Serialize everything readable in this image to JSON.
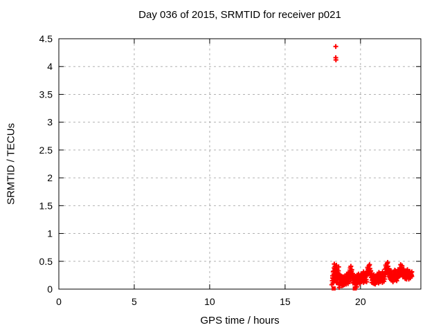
{
  "window": {
    "background": "#ffffff"
  },
  "chart_data": {
    "type": "scatter",
    "title": "Day 036 of 2015, SRMTID for receiver p021",
    "xlabel": "GPS time / hours",
    "ylabel": "SRMTID / TECUs",
    "xlim": [
      0,
      24
    ],
    "ylim": [
      0,
      4.5
    ],
    "x_ticks": [
      0,
      5,
      10,
      15,
      20
    ],
    "x_tick_labels": [
      "0",
      "5",
      "10",
      "15",
      "20"
    ],
    "y_ticks": [
      0,
      0.5,
      1,
      1.5,
      2,
      2.5,
      3,
      3.5,
      4,
      4.5
    ],
    "y_tick_labels": [
      "0",
      "0.5",
      "1",
      "1.5",
      "2",
      "2.5",
      "3",
      "3.5",
      "4",
      "4.5"
    ],
    "grid": true,
    "grid_style": "dashed",
    "legend_position": "none",
    "marker": "plus",
    "zero_value_marker": "filled-square",
    "colors": {
      "points": "#ff0000",
      "grid": "#b0b0b0",
      "axis": "#000000",
      "text": "#000000"
    },
    "series": [
      {
        "name": "SRMTID",
        "points": [
          [
            18.1,
            0.08
          ],
          [
            18.13,
            0.15
          ],
          [
            18.15,
            0.24
          ],
          [
            18.17,
            0.11
          ],
          [
            18.19,
            0.31
          ],
          [
            18.21,
            0.18
          ],
          [
            18.22,
            0.0
          ],
          [
            18.23,
            0.27
          ],
          [
            18.25,
            0.38
          ],
          [
            18.26,
            0.45
          ],
          [
            18.28,
            0.33
          ],
          [
            18.3,
            0.22
          ],
          [
            18.31,
            0.41
          ],
          [
            18.33,
            0.28
          ],
          [
            18.35,
            0.16
          ],
          [
            18.36,
            0.35
          ],
          [
            18.38,
            0.25
          ],
          [
            18.4,
            0.43
          ],
          [
            18.41,
            0.3
          ],
          [
            18.43,
            0.2
          ],
          [
            18.36,
            4.36
          ],
          [
            18.36,
            4.16
          ],
          [
            18.37,
            4.12
          ],
          [
            18.45,
            0.36
          ],
          [
            18.47,
            0.12
          ],
          [
            18.49,
            0.28
          ],
          [
            18.51,
            0.19
          ],
          [
            18.53,
            0.33
          ],
          [
            18.55,
            0.24
          ],
          [
            18.57,
            0.08
          ],
          [
            18.59,
            0.03
          ],
          [
            18.6,
            0.17
          ],
          [
            18.63,
            0.26
          ],
          [
            18.66,
            0.13
          ],
          [
            18.69,
            0.21
          ],
          [
            18.72,
            0.1
          ],
          [
            18.75,
            0.18
          ],
          [
            18.78,
            0.06
          ],
          [
            18.81,
            0.14
          ],
          [
            18.84,
            0.22
          ],
          [
            18.87,
            0.11
          ],
          [
            18.9,
            0.17
          ],
          [
            18.93,
            0.08
          ],
          [
            18.96,
            0.15
          ],
          [
            18.99,
            0.23
          ],
          [
            19.02,
            0.12
          ],
          [
            19.05,
            0.19
          ],
          [
            19.08,
            0.27
          ],
          [
            19.11,
            0.15
          ],
          [
            19.14,
            0.22
          ],
          [
            19.17,
            0.1
          ],
          [
            19.2,
            0.18
          ],
          [
            19.23,
            0.26
          ],
          [
            19.26,
            0.14
          ],
          [
            19.29,
            0.31
          ],
          [
            19.32,
            0.38
          ],
          [
            19.34,
            0.24
          ],
          [
            19.36,
            0.41
          ],
          [
            19.39,
            0.29
          ],
          [
            19.42,
            0.35
          ],
          [
            19.45,
            0.21
          ],
          [
            19.48,
            0.28
          ],
          [
            19.51,
            0.16
          ],
          [
            19.54,
            0.23
          ],
          [
            19.57,
            0.12
          ],
          [
            19.6,
            0.19
          ],
          [
            19.62,
            0.0
          ],
          [
            19.63,
            0.08
          ],
          [
            19.66,
            0.15
          ],
          [
            19.69,
            0.22
          ],
          [
            19.72,
            0.11
          ],
          [
            19.75,
            0.18
          ],
          [
            19.76,
            0.04
          ],
          [
            19.78,
            0.25
          ],
          [
            19.81,
            0.13
          ],
          [
            19.84,
            0.2
          ],
          [
            19.87,
            0.27
          ],
          [
            19.9,
            0.15
          ],
          [
            19.93,
            0.22
          ],
          [
            19.96,
            0.1
          ],
          [
            19.99,
            0.17
          ],
          [
            20.02,
            0.24
          ],
          [
            20.05,
            0.13
          ],
          [
            20.08,
            0.2
          ],
          [
            20.11,
            0.28
          ],
          [
            20.14,
            0.16
          ],
          [
            20.17,
            0.23
          ],
          [
            20.2,
            0.31
          ],
          [
            20.23,
            0.19
          ],
          [
            20.26,
            0.26
          ],
          [
            20.29,
            0.14
          ],
          [
            20.32,
            0.21
          ],
          [
            20.35,
            0.29
          ],
          [
            20.38,
            0.17
          ],
          [
            20.41,
            0.24
          ],
          [
            20.44,
            0.32
          ],
          [
            20.47,
            0.39
          ],
          [
            20.5,
            0.27
          ],
          [
            20.53,
            0.34
          ],
          [
            20.56,
            0.42
          ],
          [
            20.59,
            0.3
          ],
          [
            20.62,
            0.37
          ],
          [
            20.65,
            0.25
          ],
          [
            20.68,
            0.33
          ],
          [
            20.71,
            0.21
          ],
          [
            20.74,
            0.28
          ],
          [
            20.77,
            0.16
          ],
          [
            20.8,
            0.23
          ],
          [
            20.83,
            0.11
          ],
          [
            20.86,
            0.19
          ],
          [
            20.89,
            0.26
          ],
          [
            20.92,
            0.14
          ],
          [
            20.95,
            0.21
          ],
          [
            20.98,
            0.09
          ],
          [
            21.01,
            0.17
          ],
          [
            21.04,
            0.24
          ],
          [
            21.07,
            0.12
          ],
          [
            21.1,
            0.2
          ],
          [
            21.13,
            0.27
          ],
          [
            21.16,
            0.15
          ],
          [
            21.19,
            0.22
          ],
          [
            21.22,
            0.3
          ],
          [
            21.25,
            0.18
          ],
          [
            21.28,
            0.25
          ],
          [
            21.31,
            0.13
          ],
          [
            21.34,
            0.21
          ],
          [
            21.37,
            0.28
          ],
          [
            21.4,
            0.16
          ],
          [
            21.43,
            0.23
          ],
          [
            21.46,
            0.31
          ],
          [
            21.49,
            0.19
          ],
          [
            21.52,
            0.26
          ],
          [
            21.55,
            0.14
          ],
          [
            21.58,
            0.22
          ],
          [
            21.61,
            0.29
          ],
          [
            21.64,
            0.36
          ],
          [
            21.67,
            0.43
          ],
          [
            21.7,
            0.31
          ],
          [
            21.73,
            0.38
          ],
          [
            21.76,
            0.46
          ],
          [
            21.79,
            0.34
          ],
          [
            21.82,
            0.41
          ],
          [
            21.85,
            0.28
          ],
          [
            21.88,
            0.35
          ],
          [
            21.91,
            0.23
          ],
          [
            21.94,
            0.3
          ],
          [
            21.97,
            0.18
          ],
          [
            22.0,
            0.25
          ],
          [
            22.03,
            0.33
          ],
          [
            22.06,
            0.21
          ],
          [
            22.09,
            0.28
          ],
          [
            22.12,
            0.16
          ],
          [
            22.15,
            0.23
          ],
          [
            22.18,
            0.31
          ],
          [
            22.21,
            0.19
          ],
          [
            22.24,
            0.26
          ],
          [
            22.27,
            0.34
          ],
          [
            22.3,
            0.22
          ],
          [
            22.33,
            0.29
          ],
          [
            22.36,
            0.17
          ],
          [
            22.39,
            0.24
          ],
          [
            22.42,
            0.32
          ],
          [
            22.45,
            0.2
          ],
          [
            22.48,
            0.27
          ],
          [
            22.51,
            0.35
          ],
          [
            22.54,
            0.23
          ],
          [
            22.57,
            0.3
          ],
          [
            22.6,
            0.38
          ],
          [
            22.63,
            0.26
          ],
          [
            22.66,
            0.44
          ],
          [
            22.69,
            0.32
          ],
          [
            22.72,
            0.39
          ],
          [
            22.75,
            0.27
          ],
          [
            22.78,
            0.34
          ],
          [
            22.81,
            0.22
          ],
          [
            22.84,
            0.29
          ],
          [
            22.87,
            0.36
          ],
          [
            22.9,
            0.24
          ],
          [
            22.93,
            0.31
          ],
          [
            22.96,
            0.19
          ],
          [
            22.99,
            0.26
          ],
          [
            23.02,
            0.33
          ],
          [
            23.05,
            0.21
          ],
          [
            23.08,
            0.28
          ],
          [
            23.11,
            0.35
          ],
          [
            23.14,
            0.23
          ],
          [
            23.17,
            0.3
          ],
          [
            23.2,
            0.18
          ],
          [
            23.23,
            0.25
          ],
          [
            23.26,
            0.32
          ],
          [
            23.29,
            0.27
          ],
          [
            23.32,
            0.22
          ],
          [
            23.35,
            0.29
          ],
          [
            23.38,
            0.25
          ],
          [
            23.4,
            0.31
          ],
          [
            18.15,
            0.2
          ],
          [
            18.2,
            0.32
          ],
          [
            18.25,
            0.14
          ],
          [
            18.3,
            0.36
          ],
          [
            18.35,
            0.27
          ],
          [
            18.4,
            0.12
          ],
          [
            18.45,
            0.3
          ],
          [
            18.5,
            0.23
          ],
          [
            18.55,
            0.4
          ],
          [
            18.6,
            0.21
          ],
          [
            18.65,
            0.09
          ],
          [
            18.7,
            0.24
          ],
          [
            18.75,
            0.13
          ],
          [
            18.8,
            0.19
          ],
          [
            18.85,
            0.07
          ],
          [
            18.9,
            0.22
          ],
          [
            18.95,
            0.12
          ],
          [
            19.0,
            0.18
          ],
          [
            19.05,
            0.09
          ],
          [
            19.1,
            0.2
          ],
          [
            19.15,
            0.27
          ],
          [
            19.2,
            0.13
          ],
          [
            19.25,
            0.22
          ],
          [
            19.3,
            0.34
          ],
          [
            19.35,
            0.19
          ],
          [
            19.4,
            0.32
          ],
          [
            19.45,
            0.25
          ],
          [
            19.5,
            0.11
          ],
          [
            19.55,
            0.2
          ],
          [
            19.6,
            0.14
          ],
          [
            19.65,
            0.23
          ],
          [
            19.7,
            0.09
          ],
          [
            19.75,
            0.16
          ],
          [
            19.8,
            0.21
          ],
          [
            19.85,
            0.11
          ],
          [
            19.9,
            0.24
          ],
          [
            19.95,
            0.14
          ],
          [
            20.0,
            0.2
          ],
          [
            20.05,
            0.27
          ],
          [
            20.1,
            0.15
          ],
          [
            20.15,
            0.22
          ],
          [
            20.2,
            0.12
          ],
          [
            20.25,
            0.28
          ],
          [
            20.3,
            0.17
          ],
          [
            20.35,
            0.24
          ],
          [
            20.4,
            0.13
          ],
          [
            20.45,
            0.27
          ],
          [
            20.5,
            0.36
          ],
          [
            20.55,
            0.3
          ],
          [
            20.6,
            0.44
          ],
          [
            20.65,
            0.31
          ],
          [
            20.7,
            0.27
          ],
          [
            20.75,
            0.12
          ],
          [
            20.8,
            0.19
          ],
          [
            20.85,
            0.25
          ],
          [
            20.9,
            0.1
          ],
          [
            20.95,
            0.17
          ],
          [
            21.0,
            0.23
          ],
          [
            21.05,
            0.13
          ],
          [
            21.1,
            0.16
          ],
          [
            21.15,
            0.25
          ],
          [
            21.2,
            0.11
          ],
          [
            21.25,
            0.21
          ],
          [
            21.3,
            0.28
          ],
          [
            21.35,
            0.15
          ],
          [
            21.4,
            0.24
          ],
          [
            21.45,
            0.12
          ],
          [
            21.5,
            0.2
          ],
          [
            21.55,
            0.27
          ],
          [
            21.6,
            0.18
          ],
          [
            21.65,
            0.26
          ],
          [
            21.7,
            0.4
          ],
          [
            21.75,
            0.29
          ],
          [
            21.8,
            0.48
          ],
          [
            21.85,
            0.37
          ],
          [
            21.9,
            0.3
          ],
          [
            21.95,
            0.21
          ],
          [
            22.0,
            0.28
          ],
          [
            22.05,
            0.16
          ],
          [
            22.1,
            0.24
          ],
          [
            22.15,
            0.13
          ],
          [
            22.2,
            0.27
          ],
          [
            22.25,
            0.2
          ],
          [
            22.3,
            0.33
          ],
          [
            22.35,
            0.25
          ],
          [
            22.4,
            0.15
          ],
          [
            22.45,
            0.28
          ],
          [
            22.5,
            0.22
          ],
          [
            22.55,
            0.31
          ],
          [
            22.6,
            0.24
          ],
          [
            22.65,
            0.35
          ],
          [
            22.7,
            0.28
          ],
          [
            22.75,
            0.42
          ],
          [
            22.8,
            0.3
          ],
          [
            22.85,
            0.25
          ],
          [
            22.9,
            0.33
          ],
          [
            22.95,
            0.22
          ],
          [
            23.0,
            0.29
          ],
          [
            23.05,
            0.18
          ],
          [
            23.1,
            0.26
          ],
          [
            23.15,
            0.32
          ],
          [
            23.2,
            0.24
          ],
          [
            23.25,
            0.29
          ],
          [
            23.3,
            0.2
          ],
          [
            23.35,
            0.26
          ],
          [
            23.4,
            0.23
          ]
        ]
      }
    ]
  }
}
